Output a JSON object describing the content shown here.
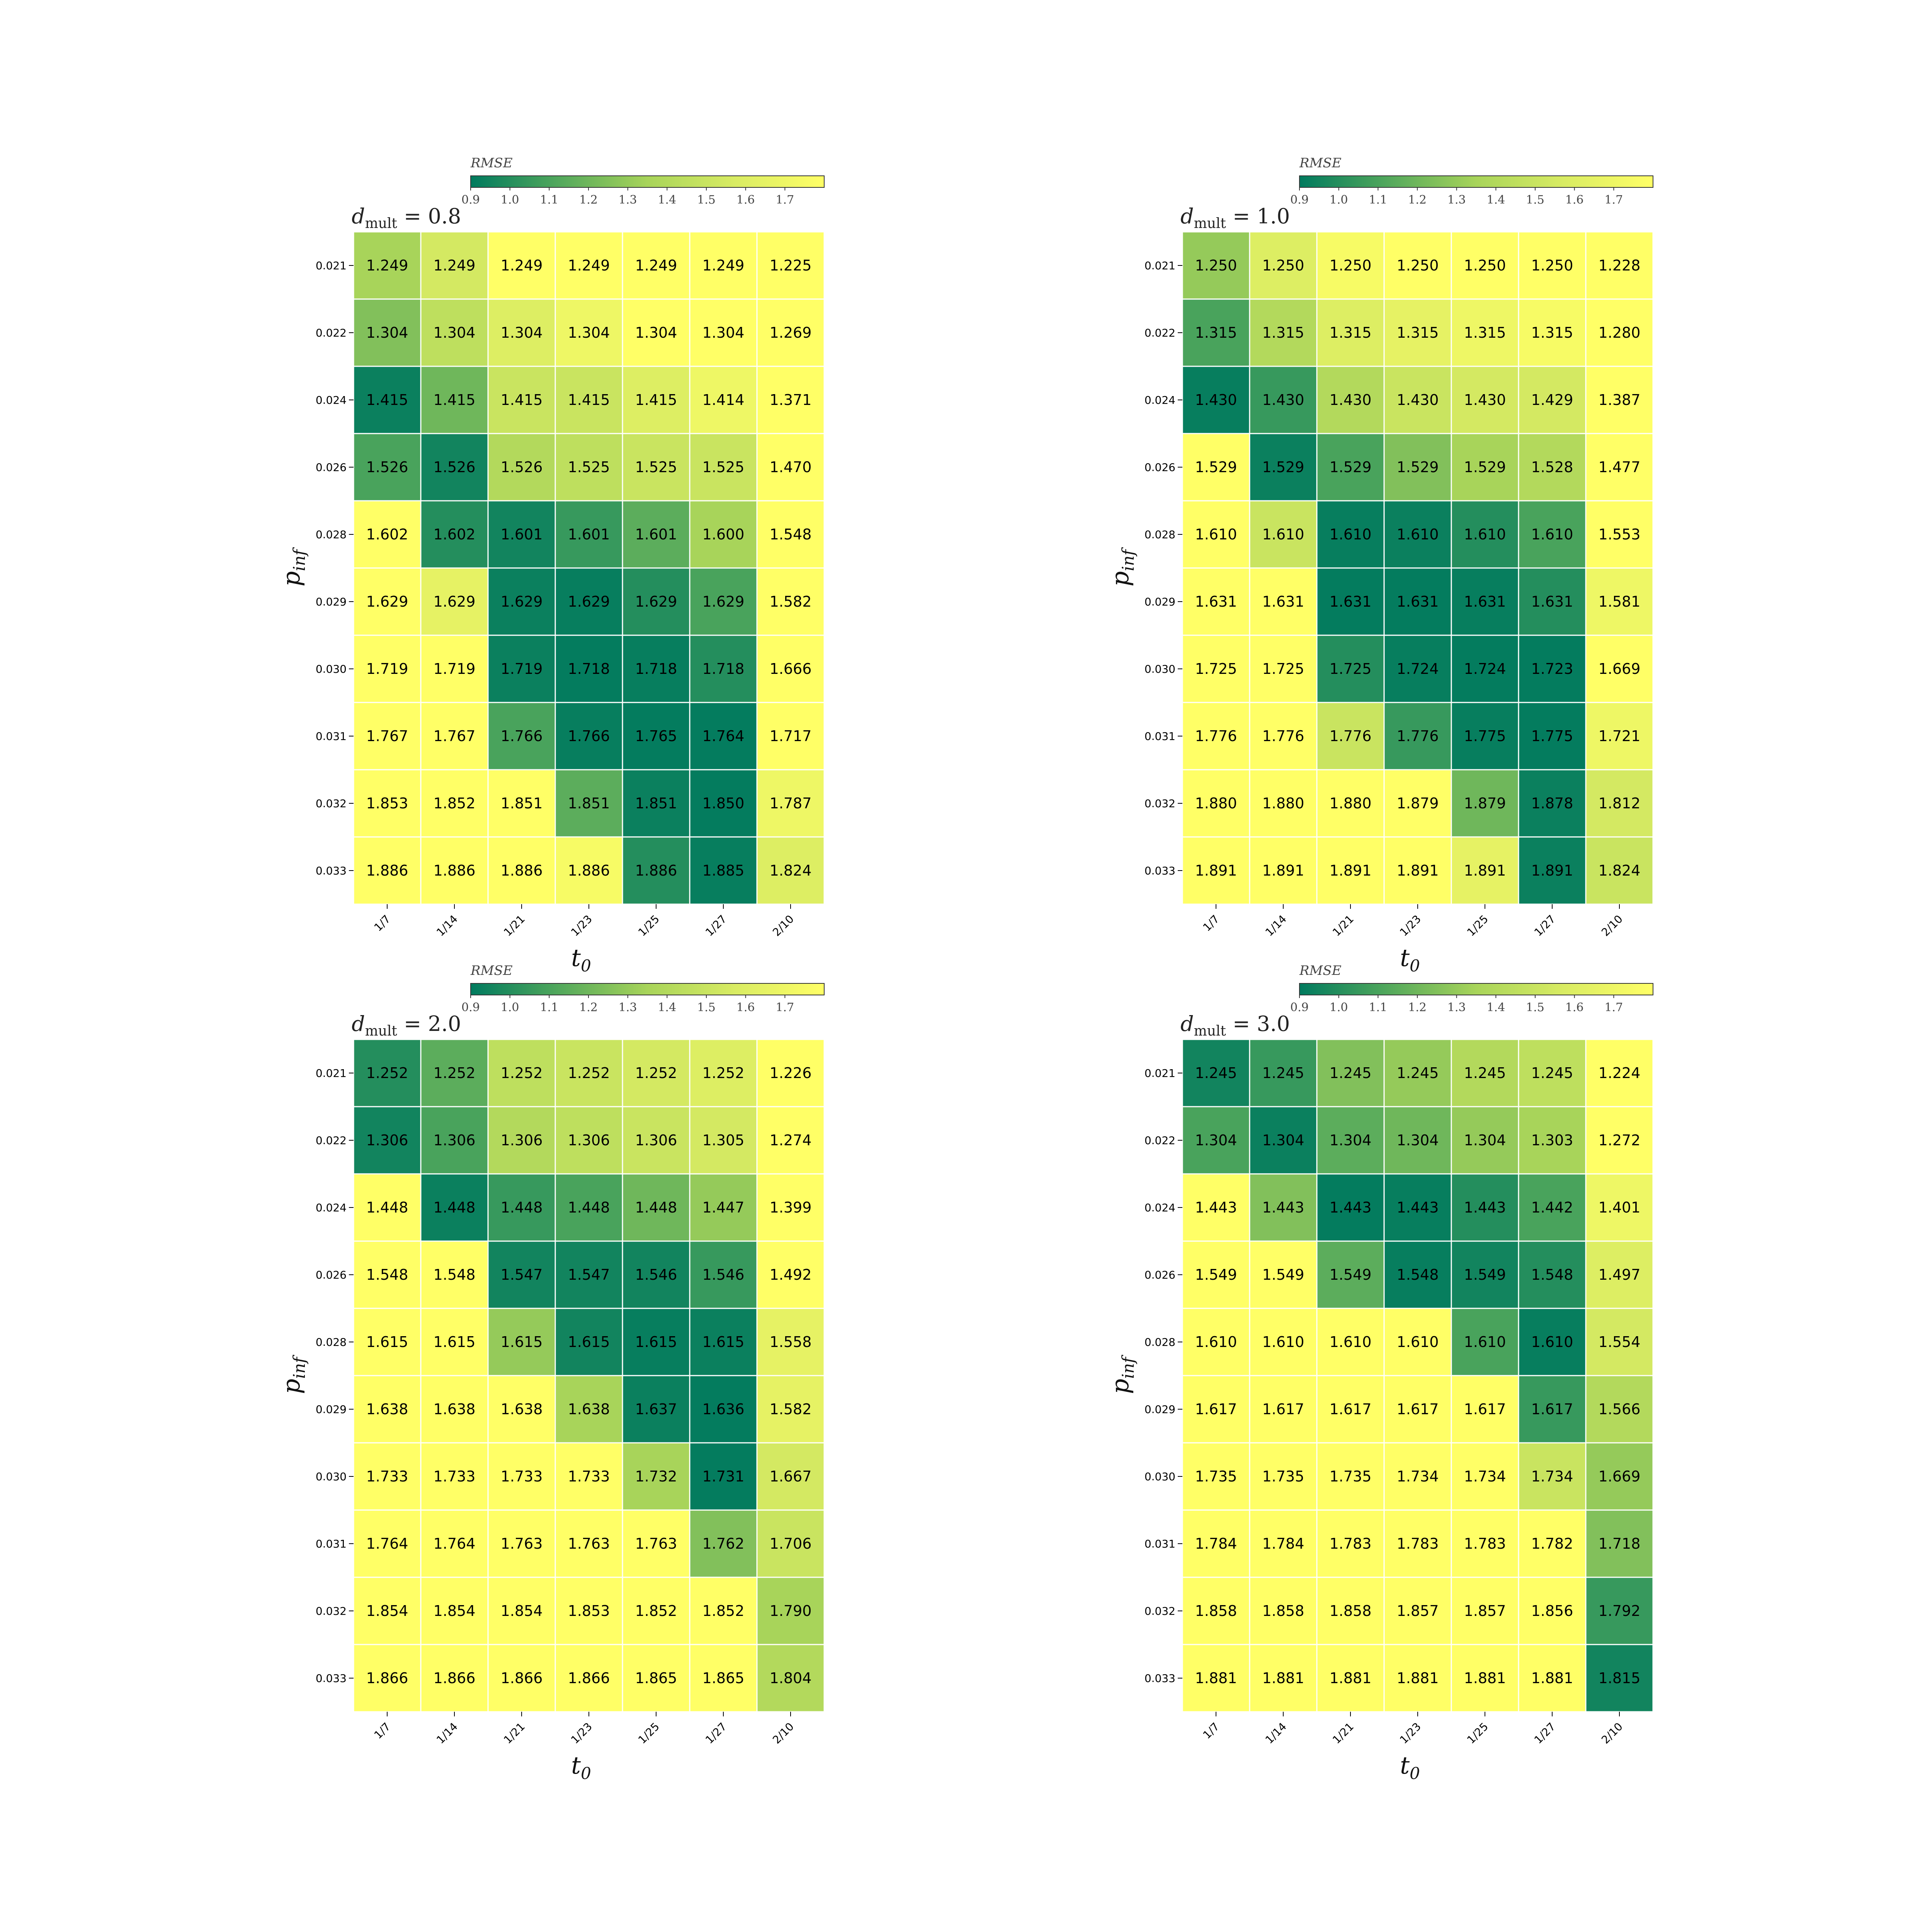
{
  "chart_data": [
    {
      "type": "heatmap",
      "title_var": "d",
      "title_sub": "mult",
      "title_value": " = 0.8",
      "xlabel": "t",
      "xlabel_sub": "0",
      "ylabel": "p",
      "ylabel_sub": "inf",
      "x_ticks": [
        "1/7",
        "1/14",
        "1/21",
        "1/23",
        "1/25",
        "1/27",
        "2/10"
      ],
      "y_ticks": [
        "0.021",
        "0.022",
        "0.024",
        "0.026",
        "0.028",
        "0.029",
        "0.030",
        "0.031",
        "0.032",
        "0.033"
      ],
      "values": [
        [
          "1.249",
          "1.249",
          "1.249",
          "1.249",
          "1.249",
          "1.249",
          "1.225"
        ],
        [
          "1.304",
          "1.304",
          "1.304",
          "1.304",
          "1.304",
          "1.304",
          "1.269"
        ],
        [
          "1.415",
          "1.415",
          "1.415",
          "1.415",
          "1.415",
          "1.414",
          "1.371"
        ],
        [
          "1.526",
          "1.526",
          "1.526",
          "1.525",
          "1.525",
          "1.525",
          "1.470"
        ],
        [
          "1.602",
          "1.602",
          "1.601",
          "1.601",
          "1.601",
          "1.600",
          "1.548"
        ],
        [
          "1.629",
          "1.629",
          "1.629",
          "1.629",
          "1.629",
          "1.629",
          "1.582"
        ],
        [
          "1.719",
          "1.719",
          "1.719",
          "1.718",
          "1.718",
          "1.718",
          "1.666"
        ],
        [
          "1.767",
          "1.767",
          "1.766",
          "1.766",
          "1.765",
          "1.764",
          "1.717"
        ],
        [
          "1.853",
          "1.852",
          "1.851",
          "1.851",
          "1.851",
          "1.850",
          "1.787"
        ],
        [
          "1.886",
          "1.886",
          "1.886",
          "1.886",
          "1.886",
          "1.885",
          "1.824"
        ]
      ],
      "color_values": [
        [
          1.35,
          1.55,
          1.8,
          1.8,
          1.8,
          1.8,
          1.8
        ],
        [
          1.25,
          1.45,
          1.6,
          1.7,
          1.8,
          1.8,
          1.8
        ],
        [
          0.93,
          1.2,
          1.5,
          1.5,
          1.6,
          1.7,
          1.8
        ],
        [
          1.1,
          0.95,
          1.4,
          1.45,
          1.5,
          1.5,
          1.8
        ],
        [
          1.8,
          1.0,
          0.95,
          1.05,
          1.15,
          1.35,
          1.8
        ],
        [
          1.8,
          1.65,
          0.93,
          0.92,
          1.0,
          1.1,
          1.8
        ],
        [
          1.8,
          1.8,
          0.93,
          0.91,
          0.92,
          1.0,
          1.8
        ],
        [
          1.8,
          1.8,
          1.1,
          0.92,
          0.91,
          0.91,
          1.8
        ],
        [
          1.8,
          1.8,
          1.8,
          1.15,
          0.93,
          0.91,
          1.7
        ],
        [
          1.8,
          1.8,
          1.8,
          1.75,
          1.0,
          0.92,
          1.6
        ]
      ]
    },
    {
      "type": "heatmap",
      "title_var": "d",
      "title_sub": "mult",
      "title_value": " = 1.0",
      "xlabel": "t",
      "xlabel_sub": "0",
      "ylabel": "p",
      "ylabel_sub": "inf",
      "x_ticks": [
        "1/7",
        "1/14",
        "1/21",
        "1/23",
        "1/25",
        "1/27",
        "2/10"
      ],
      "y_ticks": [
        "0.021",
        "0.022",
        "0.024",
        "0.026",
        "0.028",
        "0.029",
        "0.030",
        "0.031",
        "0.032",
        "0.033"
      ],
      "values": [
        [
          "1.250",
          "1.250",
          "1.250",
          "1.250",
          "1.250",
          "1.250",
          "1.228"
        ],
        [
          "1.315",
          "1.315",
          "1.315",
          "1.315",
          "1.315",
          "1.315",
          "1.280"
        ],
        [
          "1.430",
          "1.430",
          "1.430",
          "1.430",
          "1.430",
          "1.429",
          "1.387"
        ],
        [
          "1.529",
          "1.529",
          "1.529",
          "1.529",
          "1.529",
          "1.528",
          "1.477"
        ],
        [
          "1.610",
          "1.610",
          "1.610",
          "1.610",
          "1.610",
          "1.610",
          "1.553"
        ],
        [
          "1.631",
          "1.631",
          "1.631",
          "1.631",
          "1.631",
          "1.631",
          "1.581"
        ],
        [
          "1.725",
          "1.725",
          "1.725",
          "1.724",
          "1.724",
          "1.723",
          "1.669"
        ],
        [
          "1.776",
          "1.776",
          "1.776",
          "1.776",
          "1.775",
          "1.775",
          "1.721"
        ],
        [
          "1.880",
          "1.880",
          "1.880",
          "1.879",
          "1.879",
          "1.878",
          "1.812"
        ],
        [
          "1.891",
          "1.891",
          "1.891",
          "1.891",
          "1.891",
          "1.891",
          "1.824"
        ]
      ],
      "color_values": [
        [
          1.3,
          1.6,
          1.75,
          1.8,
          1.8,
          1.8,
          1.8
        ],
        [
          1.1,
          1.4,
          1.6,
          1.65,
          1.7,
          1.75,
          1.8
        ],
        [
          0.92,
          1.05,
          1.4,
          1.5,
          1.55,
          1.55,
          1.8
        ],
        [
          1.8,
          0.93,
          1.1,
          1.25,
          1.35,
          1.4,
          1.8
        ],
        [
          1.8,
          1.5,
          0.92,
          0.93,
          1.0,
          1.1,
          1.8
        ],
        [
          1.8,
          1.8,
          0.91,
          0.91,
          0.92,
          1.0,
          1.7
        ],
        [
          1.8,
          1.8,
          1.0,
          0.92,
          0.91,
          0.91,
          1.8
        ],
        [
          1.8,
          1.8,
          1.5,
          1.05,
          0.92,
          0.91,
          1.7
        ],
        [
          1.8,
          1.8,
          1.8,
          1.8,
          1.2,
          0.93,
          1.55
        ],
        [
          1.8,
          1.8,
          1.8,
          1.8,
          1.65,
          0.93,
          1.5
        ]
      ]
    },
    {
      "type": "heatmap",
      "title_var": "d",
      "title_sub": "mult",
      "title_value": " = 2.0",
      "xlabel": "t",
      "xlabel_sub": "0",
      "ylabel": "p",
      "ylabel_sub": "inf",
      "x_ticks": [
        "1/7",
        "1/14",
        "1/21",
        "1/23",
        "1/25",
        "1/27",
        "2/10"
      ],
      "y_ticks": [
        "0.021",
        "0.022",
        "0.024",
        "0.026",
        "0.028",
        "0.029",
        "0.030",
        "0.031",
        "0.032",
        "0.033"
      ],
      "values": [
        [
          "1.252",
          "1.252",
          "1.252",
          "1.252",
          "1.252",
          "1.252",
          "1.226"
        ],
        [
          "1.306",
          "1.306",
          "1.306",
          "1.306",
          "1.306",
          "1.305",
          "1.274"
        ],
        [
          "1.448",
          "1.448",
          "1.448",
          "1.448",
          "1.448",
          "1.447",
          "1.399"
        ],
        [
          "1.548",
          "1.548",
          "1.547",
          "1.547",
          "1.546",
          "1.546",
          "1.492"
        ],
        [
          "1.615",
          "1.615",
          "1.615",
          "1.615",
          "1.615",
          "1.615",
          "1.558"
        ],
        [
          "1.638",
          "1.638",
          "1.638",
          "1.638",
          "1.637",
          "1.636",
          "1.582"
        ],
        [
          "1.733",
          "1.733",
          "1.733",
          "1.733",
          "1.732",
          "1.731",
          "1.667"
        ],
        [
          "1.764",
          "1.764",
          "1.763",
          "1.763",
          "1.763",
          "1.762",
          "1.706"
        ],
        [
          "1.854",
          "1.854",
          "1.854",
          "1.853",
          "1.852",
          "1.852",
          "1.790"
        ],
        [
          "1.866",
          "1.866",
          "1.866",
          "1.866",
          "1.865",
          "1.865",
          "1.804"
        ]
      ],
      "color_values": [
        [
          1.0,
          1.15,
          1.45,
          1.5,
          1.55,
          1.6,
          1.8
        ],
        [
          0.95,
          1.1,
          1.4,
          1.45,
          1.5,
          1.55,
          1.8
        ],
        [
          1.8,
          0.93,
          1.05,
          1.1,
          1.2,
          1.3,
          1.8
        ],
        [
          1.8,
          1.8,
          0.95,
          0.95,
          0.95,
          1.05,
          1.8
        ],
        [
          1.8,
          1.8,
          1.3,
          0.95,
          0.92,
          0.93,
          1.65
        ],
        [
          1.8,
          1.8,
          1.8,
          1.35,
          0.93,
          0.91,
          1.65
        ],
        [
          1.8,
          1.8,
          1.8,
          1.8,
          1.35,
          0.91,
          1.55
        ],
        [
          1.8,
          1.8,
          1.8,
          1.8,
          1.8,
          1.25,
          1.5
        ],
        [
          1.8,
          1.8,
          1.8,
          1.8,
          1.8,
          1.8,
          1.35
        ],
        [
          1.8,
          1.8,
          1.8,
          1.8,
          1.8,
          1.8,
          1.4
        ]
      ]
    },
    {
      "type": "heatmap",
      "title_var": "d",
      "title_sub": "mult",
      "title_value": " = 3.0",
      "xlabel": "t",
      "xlabel_sub": "0",
      "ylabel": "p",
      "ylabel_sub": "inf",
      "x_ticks": [
        "1/7",
        "1/14",
        "1/21",
        "1/23",
        "1/25",
        "1/27",
        "2/10"
      ],
      "y_ticks": [
        "0.021",
        "0.022",
        "0.024",
        "0.026",
        "0.028",
        "0.029",
        "0.030",
        "0.031",
        "0.032",
        "0.033"
      ],
      "values": [
        [
          "1.245",
          "1.245",
          "1.245",
          "1.245",
          "1.245",
          "1.245",
          "1.224"
        ],
        [
          "1.304",
          "1.304",
          "1.304",
          "1.304",
          "1.304",
          "1.303",
          "1.272"
        ],
        [
          "1.443",
          "1.443",
          "1.443",
          "1.443",
          "1.443",
          "1.442",
          "1.401"
        ],
        [
          "1.549",
          "1.549",
          "1.549",
          "1.548",
          "1.549",
          "1.548",
          "1.497"
        ],
        [
          "1.610",
          "1.610",
          "1.610",
          "1.610",
          "1.610",
          "1.610",
          "1.554"
        ],
        [
          "1.617",
          "1.617",
          "1.617",
          "1.617",
          "1.617",
          "1.617",
          "1.566"
        ],
        [
          "1.735",
          "1.735",
          "1.735",
          "1.734",
          "1.734",
          "1.734",
          "1.669"
        ],
        [
          "1.784",
          "1.784",
          "1.783",
          "1.783",
          "1.783",
          "1.782",
          "1.718"
        ],
        [
          "1.858",
          "1.858",
          "1.858",
          "1.857",
          "1.857",
          "1.856",
          "1.792"
        ],
        [
          "1.881",
          "1.881",
          "1.881",
          "1.881",
          "1.881",
          "1.881",
          "1.815"
        ]
      ],
      "color_values": [
        [
          0.95,
          1.05,
          1.25,
          1.3,
          1.4,
          1.45,
          1.8
        ],
        [
          1.1,
          0.93,
          1.15,
          1.2,
          1.3,
          1.35,
          1.8
        ],
        [
          1.8,
          1.25,
          0.91,
          0.92,
          1.0,
          1.1,
          1.7
        ],
        [
          1.8,
          1.8,
          1.15,
          0.92,
          0.95,
          1.0,
          1.6
        ],
        [
          1.8,
          1.8,
          1.8,
          1.8,
          1.1,
          0.92,
          1.55
        ],
        [
          1.8,
          1.8,
          1.8,
          1.8,
          1.8,
          1.05,
          1.4
        ],
        [
          1.8,
          1.8,
          1.8,
          1.8,
          1.8,
          1.5,
          1.3
        ],
        [
          1.8,
          1.8,
          1.8,
          1.8,
          1.8,
          1.8,
          1.25
        ],
        [
          1.8,
          1.8,
          1.8,
          1.8,
          1.8,
          1.8,
          1.05
        ],
        [
          1.8,
          1.8,
          1.8,
          1.8,
          1.8,
          1.8,
          0.95
        ]
      ]
    }
  ],
  "colorbar": {
    "label": "RMSE",
    "ticks": [
      "0.9",
      "1.0",
      "1.1",
      "1.2",
      "1.3",
      "1.4",
      "1.5",
      "1.6",
      "1.7"
    ],
    "range": [
      0.9,
      1.8
    ],
    "colors": [
      "#007a5e",
      "#52a85c",
      "#a8d45a",
      "#d9ec63",
      "#ffff66"
    ]
  }
}
